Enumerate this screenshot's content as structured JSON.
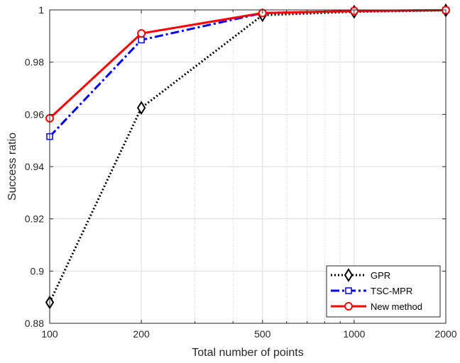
{
  "chart_data": {
    "type": "line",
    "title": "",
    "xlabel": "Total number of points",
    "ylabel": "Success ratio",
    "x_scale": "log",
    "x": [
      100,
      200,
      500,
      1000,
      2000
    ],
    "x_tick_labels": [
      "100",
      "200",
      "500",
      "1000",
      "2000"
    ],
    "xlim": [
      100,
      2000
    ],
    "ylim": [
      0.88,
      1.0
    ],
    "y_ticks": [
      0.88,
      0.9,
      0.92,
      0.94,
      0.96,
      0.98,
      1.0
    ],
    "y_tick_labels": [
      "0.88",
      "0.9",
      "0.92",
      "0.94",
      "0.96",
      "0.98",
      "1"
    ],
    "grid": true,
    "legend_position": "bottom-right",
    "series": [
      {
        "name": "GPR",
        "values": [
          0.888,
          0.9625,
          0.998,
          0.9993,
          0.9998
        ],
        "color": "#000000",
        "line_style": "dotted",
        "marker": "diamond"
      },
      {
        "name": "TSC-MPR",
        "values": [
          0.9515,
          0.9885,
          0.9988,
          0.9996,
          0.9999
        ],
        "color": "#0000ff",
        "line_style": "dash-dot",
        "marker": "square"
      },
      {
        "name": "New method",
        "values": [
          0.9585,
          0.991,
          0.9988,
          0.9996,
          0.9999
        ],
        "color": "#ff0000",
        "line_style": "solid",
        "marker": "circle"
      }
    ]
  }
}
